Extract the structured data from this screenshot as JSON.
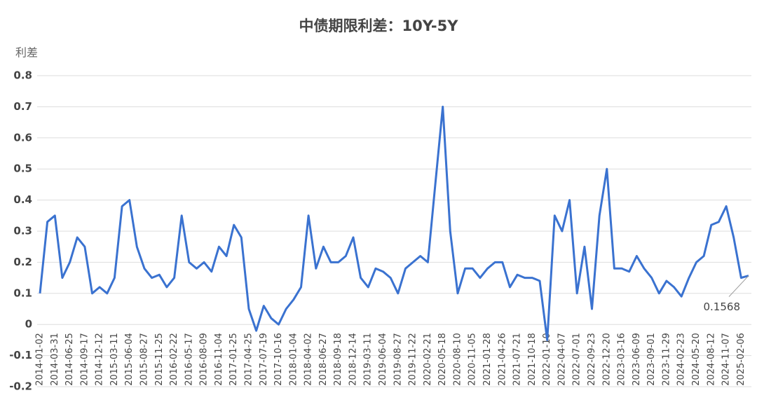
{
  "chart_data": {
    "type": "line",
    "title": "中债期限利差：10Y-5Y",
    "ylabel": "利差",
    "annotation": "0.1568",
    "categories": [
      "2014-01-02",
      null,
      "2014-03-31",
      null,
      "2014-06-25",
      null,
      "2014-09-17",
      null,
      "2014-12-12",
      null,
      "2015-03-11",
      null,
      "2015-06-04",
      null,
      "2015-08-27",
      null,
      "2015-11-25",
      null,
      "2016-02-22",
      null,
      "2016-05-17",
      null,
      "2016-08-09",
      null,
      "2016-11-04",
      null,
      "2017-01-25",
      null,
      "2017-04-25",
      null,
      "2017-07-19",
      null,
      "2017-10-16",
      null,
      "2018-01-04",
      null,
      "2018-04-02",
      null,
      "2018-06-27",
      null,
      "2018-09-18",
      null,
      "2018-12-14",
      null,
      "2019-03-11",
      null,
      "2019-06-04",
      null,
      "2019-08-27",
      null,
      "2019-11-22",
      null,
      "2020-02-21",
      null,
      "2020-05-18",
      null,
      "2020-08-10",
      null,
      "2020-11-05",
      null,
      "2021-01-28",
      null,
      "2021-04-26",
      null,
      "2021-07-21",
      null,
      "2021-10-18",
      null,
      "2022-01-10",
      null,
      "2022-04-07",
      null,
      "2022-07-01",
      null,
      "2022-09-23",
      null,
      "2022-12-20",
      null,
      "2023-03-16",
      null,
      "2023-06-09",
      null,
      "2023-09-01",
      null,
      "2023-11-29",
      null,
      "2024-02-23",
      null,
      "2024-05-20",
      null,
      "2024-08-12",
      null,
      "2024-11-07",
      null,
      "2025-02-06",
      null
    ],
    "series": [
      {
        "name": "10Y-5Y",
        "color": "#3a72d0",
        "values": [
          0.1,
          0.33,
          0.35,
          0.15,
          0.2,
          0.28,
          0.25,
          0.1,
          0.12,
          0.1,
          0.15,
          0.38,
          0.4,
          0.25,
          0.18,
          0.15,
          0.16,
          0.12,
          0.15,
          0.35,
          0.2,
          0.18,
          0.2,
          0.17,
          0.25,
          0.22,
          0.32,
          0.28,
          0.05,
          -0.02,
          0.06,
          0.02,
          0.0,
          0.05,
          0.08,
          0.12,
          0.35,
          0.18,
          0.25,
          0.2,
          0.2,
          0.22,
          0.28,
          0.15,
          0.12,
          0.18,
          0.17,
          0.15,
          0.1,
          0.18,
          0.2,
          0.22,
          0.2,
          0.45,
          0.7,
          0.3,
          0.1,
          0.18,
          0.18,
          0.15,
          0.18,
          0.2,
          0.2,
          0.12,
          0.16,
          0.15,
          0.15,
          0.14,
          -0.05,
          0.35,
          0.3,
          0.4,
          0.1,
          0.25,
          0.05,
          0.35,
          0.5,
          0.18,
          0.18,
          0.17,
          0.22,
          0.18,
          0.15,
          0.1,
          0.14,
          0.12,
          0.09,
          0.15,
          0.2,
          0.22,
          0.32,
          0.33,
          0.38,
          0.28,
          0.15,
          0.1568
        ]
      }
    ],
    "ylim": [
      -0.2,
      0.8
    ],
    "yticks": [
      -0.2,
      -0.1,
      0,
      0.1,
      0.2,
      0.3,
      0.4,
      0.5,
      0.6,
      0.7,
      0.8
    ],
    "grid": true
  }
}
